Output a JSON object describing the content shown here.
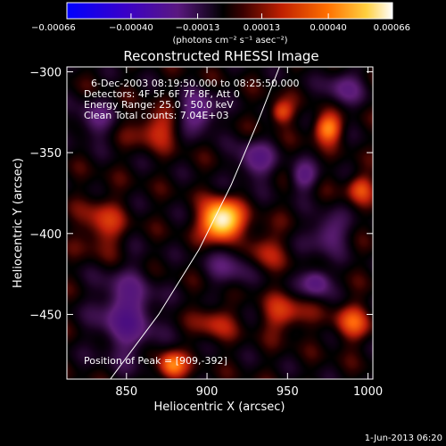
{
  "chart_data": {
    "type": "heatmap",
    "title": "Reconstructed RHESSI Image",
    "xlabel": "Heliocentric X (arcsec)",
    "ylabel": "Heliocentric Y (arcsec)",
    "xlim": [
      813,
      1003
    ],
    "ylim": [
      -490,
      -297
    ],
    "x_ticks": [
      850,
      900,
      950,
      1000
    ],
    "y_ticks": [
      -300,
      -350,
      -400,
      -450
    ],
    "x_tick_labels": [
      "850",
      "900",
      "950",
      "1000"
    ],
    "y_tick_labels": [
      "−300",
      "−350",
      "−400",
      "−450"
    ],
    "colorbar": {
      "ticks": [
        -0.00066,
        -0.0004,
        -0.00013,
        0.00013,
        0.0004,
        0.00066
      ],
      "tick_labels": [
        "−0.00066",
        "−0.00040",
        "−0.00013",
        "0.00013",
        "0.00040",
        "0.00066"
      ],
      "range": [
        -0.00066,
        0.00066
      ],
      "unit_label": "(photons cm⁻² s⁻¹ asec⁻²)"
    },
    "peak_position": [
      909,
      -392
    ],
    "limb_curve": [
      [
        840,
        -490
      ],
      [
        870,
        -450
      ],
      [
        895,
        -410
      ],
      [
        915,
        -370
      ],
      [
        932,
        -330
      ],
      [
        945,
        -297
      ]
    ],
    "blobs": [
      {
        "x": 909,
        "y": -392,
        "sx": 8,
        "sy": 8,
        "v": 1.05
      },
      {
        "x": 878,
        "y": -482,
        "sx": 6,
        "sy": 6,
        "v": 0.55
      },
      {
        "x": 975,
        "y": -335,
        "sx": 6,
        "sy": 6,
        "v": 0.55
      },
      {
        "x": 946,
        "y": -325,
        "sx": 5,
        "sy": 5,
        "v": 0.4
      },
      {
        "x": 995,
        "y": -372,
        "sx": 6,
        "sy": 6,
        "v": 0.35
      },
      {
        "x": 990,
        "y": -455,
        "sx": 8,
        "sy": 8,
        "v": 0.35
      },
      {
        "x": 948,
        "y": -450,
        "sx": 10,
        "sy": 8,
        "v": 0.3
      },
      {
        "x": 868,
        "y": -335,
        "sx": 10,
        "sy": 8,
        "v": 0.3
      },
      {
        "x": 905,
        "y": -455,
        "sx": 8,
        "sy": 8,
        "v": 0.25
      },
      {
        "x": 935,
        "y": -410,
        "sx": 8,
        "sy": 10,
        "v": 0.25
      },
      {
        "x": 835,
        "y": -395,
        "sx": 9,
        "sy": 12,
        "v": 0.3
      },
      {
        "x": 895,
        "y": -325,
        "sx": 8,
        "sy": 8,
        "v": -0.45
      },
      {
        "x": 968,
        "y": -430,
        "sx": 6,
        "sy": 6,
        "v": -0.45
      },
      {
        "x": 930,
        "y": -355,
        "sx": 8,
        "sy": 8,
        "v": -0.4
      },
      {
        "x": 850,
        "y": -450,
        "sx": 12,
        "sy": 18,
        "v": -0.45
      },
      {
        "x": 975,
        "y": -400,
        "sx": 8,
        "sy": 8,
        "v": -0.35
      },
      {
        "x": 960,
        "y": -365,
        "sx": 6,
        "sy": 6,
        "v": -0.35
      },
      {
        "x": 915,
        "y": -420,
        "sx": 10,
        "sy": 10,
        "v": -0.25
      },
      {
        "x": 830,
        "y": -330,
        "sx": 8,
        "sy": 8,
        "v": -0.3
      },
      {
        "x": 985,
        "y": -310,
        "sx": 8,
        "sy": 8,
        "v": -0.3
      }
    ],
    "annotations": {
      "time": "6-Dec-2003 08:19:50.000 to 08:25:50.000",
      "detectors": "Detectors: 4F 5F 6F 7F 8F, Att 0",
      "energy": "Energy Range: 25.0 - 50.0 keV",
      "clean": "Clean     Total counts: 7.04E+03",
      "peak": "Position of Peak = [909,-392]"
    }
  },
  "timestamp": "1-Jun-2013 06:20"
}
